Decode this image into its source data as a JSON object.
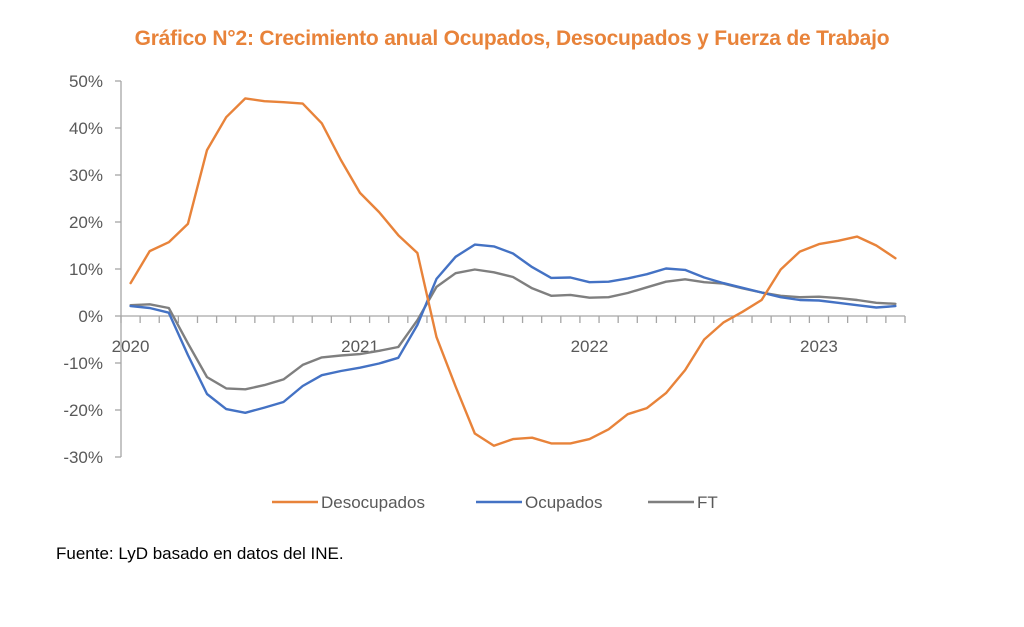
{
  "chart_data": {
    "type": "line",
    "title": "Gráfico N°2: Crecimiento anual Ocupados, Desocupados y Fuerza de Trabajo",
    "xlabel": "",
    "ylabel": "",
    "ylim": [
      -30,
      50
    ],
    "y_ticks": [
      50,
      40,
      30,
      20,
      10,
      0,
      -10,
      -20,
      -30
    ],
    "y_tick_labels": [
      "50%",
      "40%",
      "30%",
      "20%",
      "10%",
      "0%",
      "-10%",
      "-20%",
      "-30%"
    ],
    "x": [
      "2020-01",
      "2020-02",
      "2020-03",
      "2020-04",
      "2020-05",
      "2020-06",
      "2020-07",
      "2020-08",
      "2020-09",
      "2020-10",
      "2020-11",
      "2020-12",
      "2021-01",
      "2021-02",
      "2021-03",
      "2021-04",
      "2021-05",
      "2021-06",
      "2021-07",
      "2021-08",
      "2021-09",
      "2021-10",
      "2021-11",
      "2021-12",
      "2022-01",
      "2022-02",
      "2022-03",
      "2022-04",
      "2022-05",
      "2022-06",
      "2022-07",
      "2022-08",
      "2022-09",
      "2022-10",
      "2022-11",
      "2022-12",
      "2023-01",
      "2023-02",
      "2023-03",
      "2023-04",
      "2023-05"
    ],
    "x_tick_labels": [
      {
        "index": 0,
        "label": "2020"
      },
      {
        "index": 12,
        "label": "2021"
      },
      {
        "index": 24,
        "label": "2022"
      },
      {
        "index": 36,
        "label": "2023"
      }
    ],
    "grid": false,
    "legend_position": "bottom",
    "series": [
      {
        "name": "Desocupados",
        "color": "#E8833A",
        "values": [
          7.0,
          13.8,
          15.7,
          19.6,
          35.3,
          42.3,
          46.3,
          45.7,
          45.5,
          45.2,
          41.0,
          33.2,
          26.2,
          22.1,
          17.2,
          13.4,
          -4.5,
          -15.0,
          -25.0,
          -27.6,
          -26.2,
          -25.9,
          -27.1,
          -27.1,
          -26.2,
          -24.1,
          -20.9,
          -19.6,
          -16.4,
          -11.5,
          -5.0,
          -1.4,
          0.9,
          3.4,
          9.9,
          13.7,
          15.3,
          16.0,
          16.9,
          15.0,
          12.3
        ]
      },
      {
        "name": "Ocupados",
        "color": "#4472C4",
        "values": [
          2.1,
          1.7,
          0.7,
          -8.3,
          -16.6,
          -19.8,
          -20.6,
          -19.5,
          -18.3,
          -14.9,
          -12.6,
          -11.7,
          -11.0,
          -10.1,
          -8.9,
          -1.9,
          7.9,
          12.6,
          15.2,
          14.8,
          13.3,
          10.4,
          8.1,
          8.2,
          7.2,
          7.3,
          8.0,
          8.9,
          10.1,
          9.8,
          8.2,
          7.0,
          6.0,
          5.0,
          4.0,
          3.4,
          3.3,
          2.8,
          2.3,
          1.8,
          2.1
        ]
      },
      {
        "name": "FT",
        "color": "#7F7F7F",
        "values": [
          2.3,
          2.5,
          1.7,
          -5.8,
          -13.0,
          -15.4,
          -15.6,
          -14.7,
          -13.5,
          -10.4,
          -8.8,
          -8.4,
          -8.1,
          -7.4,
          -6.6,
          -0.9,
          6.2,
          9.1,
          9.9,
          9.3,
          8.3,
          5.9,
          4.3,
          4.5,
          3.9,
          4.0,
          4.9,
          6.1,
          7.3,
          7.8,
          7.2,
          6.9,
          5.9,
          5.0,
          4.3,
          4.0,
          4.1,
          3.8,
          3.4,
          2.8,
          2.6
        ]
      }
    ]
  },
  "footer": {
    "source": "Fuente: LyD basado en datos del INE."
  }
}
